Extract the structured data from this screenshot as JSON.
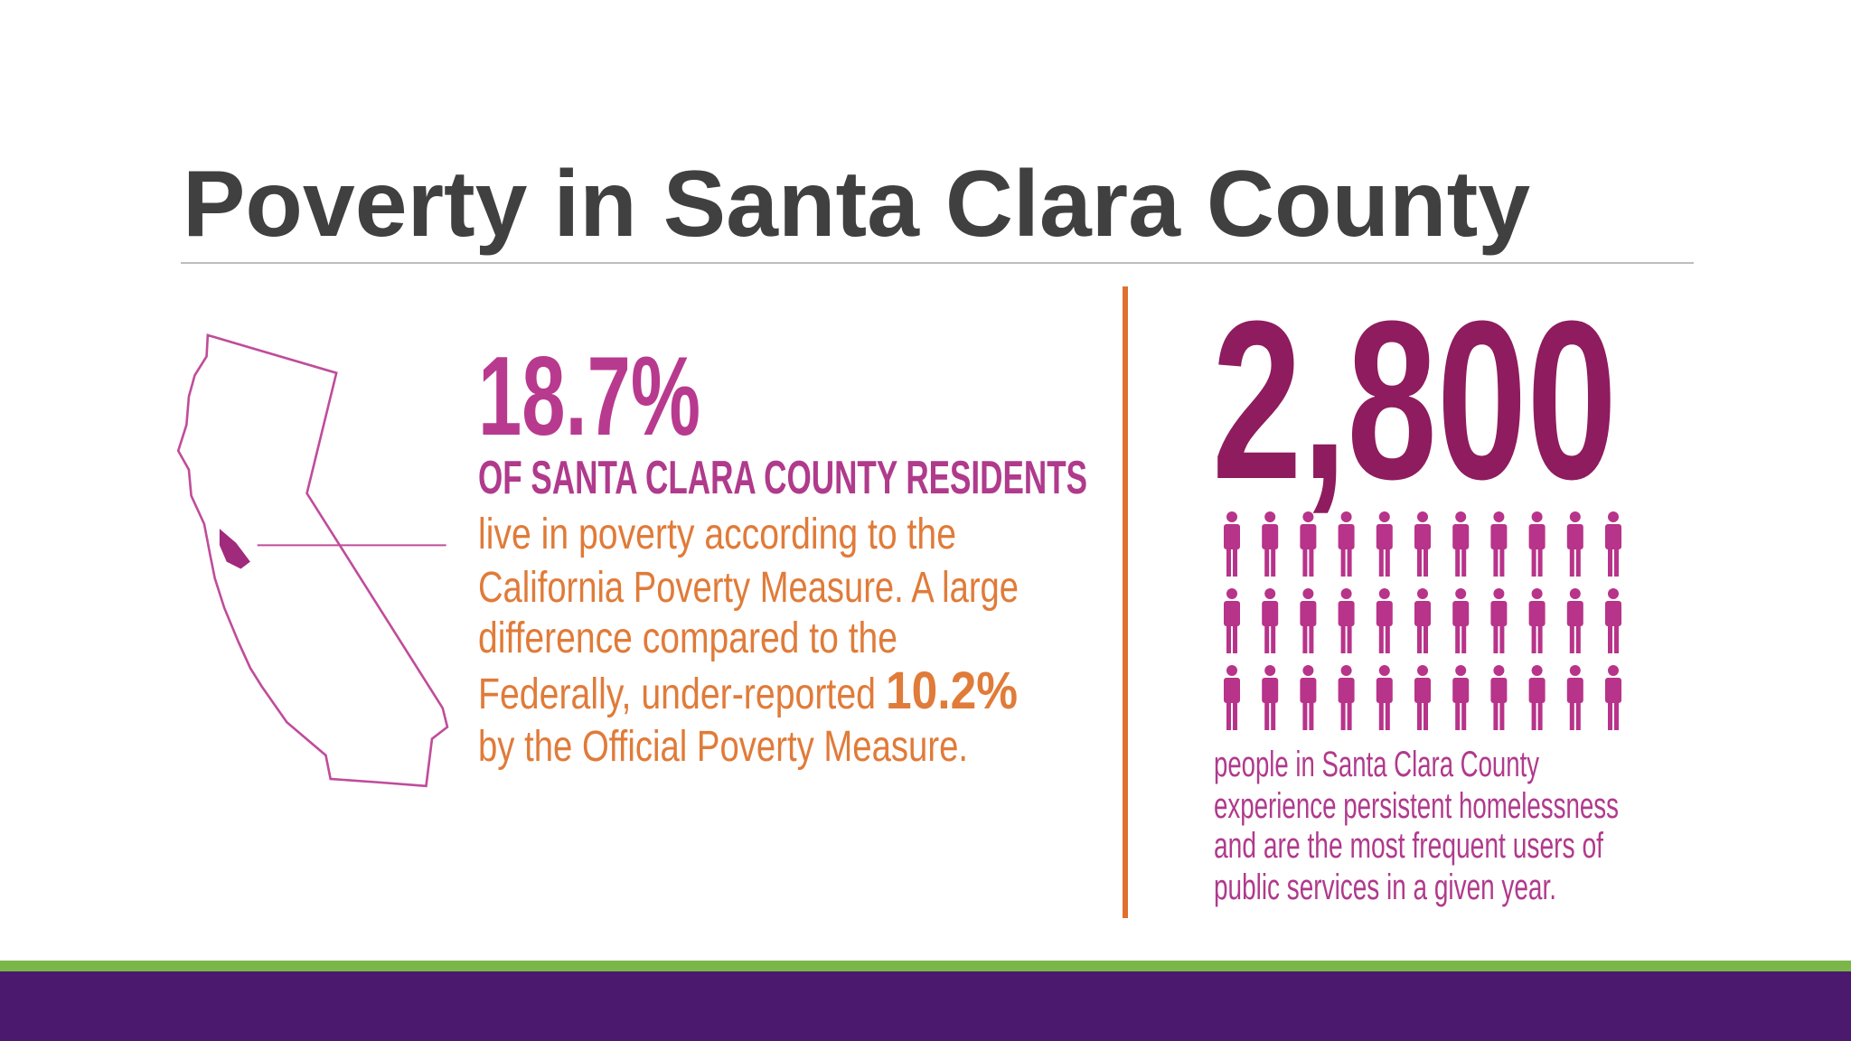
{
  "title": "Poverty in Santa Clara County",
  "left": {
    "stat": "18.7%",
    "subhead": "OF SANTA CLARA COUNTY RESIDENTS",
    "body_lines": [
      "live in poverty according to the",
      "California Poverty Measure. A large",
      "difference compared to the",
      "Federally, under-reported",
      "by the Official Poverty Measure."
    ],
    "highlight": "10.2%"
  },
  "right": {
    "stat": "2,800",
    "body_lines": [
      "people in Santa Clara County",
      "experience persistent homelessness",
      "and are the most frequent users of",
      "public services in a given year."
    ]
  }
}
